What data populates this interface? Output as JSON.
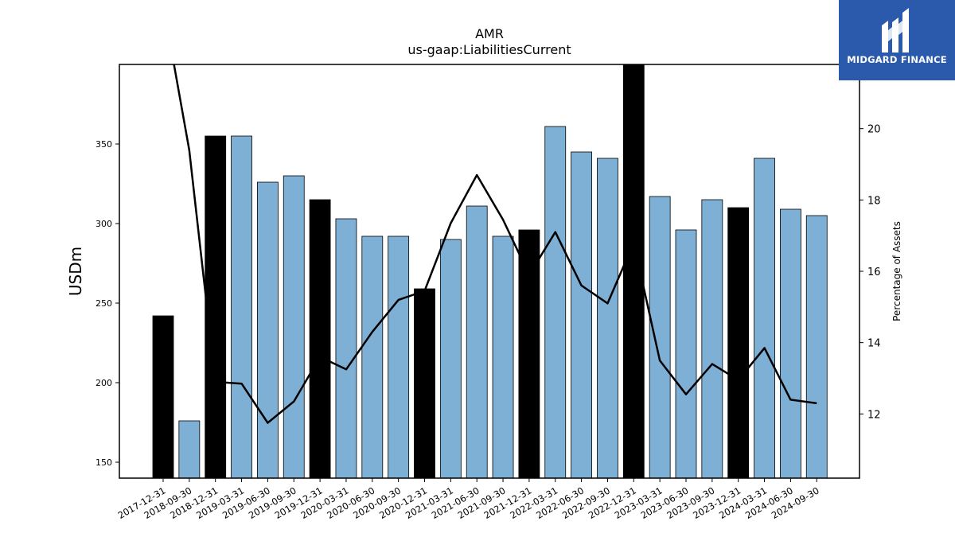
{
  "brand": {
    "name": "MIDGARD FINANCE",
    "logo_icon": "midgard-m-logo-icon",
    "background_color": "#2b5aad"
  },
  "chart_data": {
    "type": "bar",
    "title": "AMR",
    "subtitle": "us-gaap:LiabilitiesCurrent",
    "ylabel": "USDm",
    "y2label": "Percentage of Assets",
    "categories": [
      "2017-12-31",
      "2018-09-30",
      "2018-12-31",
      "2019-03-31",
      "2019-06-30",
      "2019-09-30",
      "2019-12-31",
      "2020-03-31",
      "2020-06-30",
      "2020-09-30",
      "2020-12-31",
      "2021-03-31",
      "2021-06-30",
      "2021-09-30",
      "2021-12-31",
      "2022-03-31",
      "2022-06-30",
      "2022-09-30",
      "2022-12-31",
      "2023-03-31",
      "2023-06-30",
      "2023-09-30",
      "2023-12-31",
      "2024-03-31",
      "2024-06-30",
      "2024-09-30"
    ],
    "series": [
      {
        "type": "bar",
        "axis": "left",
        "values": [
          242,
          176,
          355,
          355,
          326,
          330,
          315,
          303,
          292,
          292,
          259,
          290,
          311,
          292,
          296,
          361,
          345,
          341,
          400,
          317,
          296,
          315,
          310,
          341,
          309,
          305
        ],
        "fiscal_year_end": [
          true,
          false,
          true,
          false,
          false,
          false,
          true,
          false,
          false,
          false,
          true,
          false,
          false,
          false,
          true,
          false,
          false,
          false,
          true,
          false,
          false,
          false,
          true,
          false,
          false,
          false
        ]
      },
      {
        "type": "line",
        "axis": "right",
        "values": [
          23.5,
          19.4,
          12.9,
          12.85,
          11.75,
          12.35,
          13.6,
          13.25,
          14.3,
          15.2,
          15.45,
          17.35,
          18.7,
          17.45,
          15.9,
          17.1,
          15.6,
          15.1,
          16.8,
          13.5,
          12.55,
          13.4,
          12.95,
          13.85,
          12.4,
          12.3
        ]
      }
    ],
    "ylim": [
      140,
      400
    ],
    "y_ticks": [
      150,
      200,
      250,
      300,
      350
    ],
    "y2lim": [
      10.2,
      21.8
    ],
    "y2_ticks": [
      12,
      14,
      16,
      18,
      20
    ],
    "grid": false,
    "colors": {
      "bar": "#7eb0d5",
      "bar_fiscal_year_end": "#000000",
      "line": "#000000"
    }
  }
}
